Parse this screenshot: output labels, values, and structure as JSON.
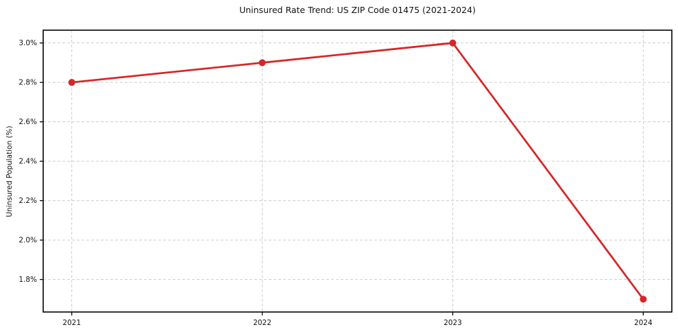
{
  "title": "Uninsured Rate Trend: US ZIP Code 01475 (2021-2024)",
  "chart_data": {
    "type": "line",
    "title": "Uninsured Rate Trend: US ZIP Code 01475 (2021-2024)",
    "xlabel": "",
    "ylabel": "Uninsured Population (%)",
    "x": [
      2021,
      2022,
      2023,
      2024
    ],
    "y": [
      2.8,
      2.9,
      3.0,
      1.7
    ],
    "xticks": [
      2021,
      2022,
      2023,
      2024
    ],
    "xtick_labels": [
      "2021",
      "2022",
      "2023",
      "2024"
    ],
    "yticks": [
      1.8,
      2.0,
      2.2,
      2.4,
      2.6,
      2.8,
      3.0
    ],
    "ytick_labels": [
      "1.8%",
      "2.0%",
      "2.2%",
      "2.4%",
      "2.6%",
      "2.8%",
      "3.0%"
    ],
    "xlim": [
      2020.85,
      2024.15
    ],
    "ylim": [
      1.635,
      3.065
    ],
    "grid": true,
    "legend": false,
    "line_color": "#d62728",
    "marker": "circle",
    "marker_radius": 5,
    "line_width": 2.8,
    "grid_color": "#cccccc",
    "spine_color": "#000000",
    "background_color": "#ffffff"
  }
}
